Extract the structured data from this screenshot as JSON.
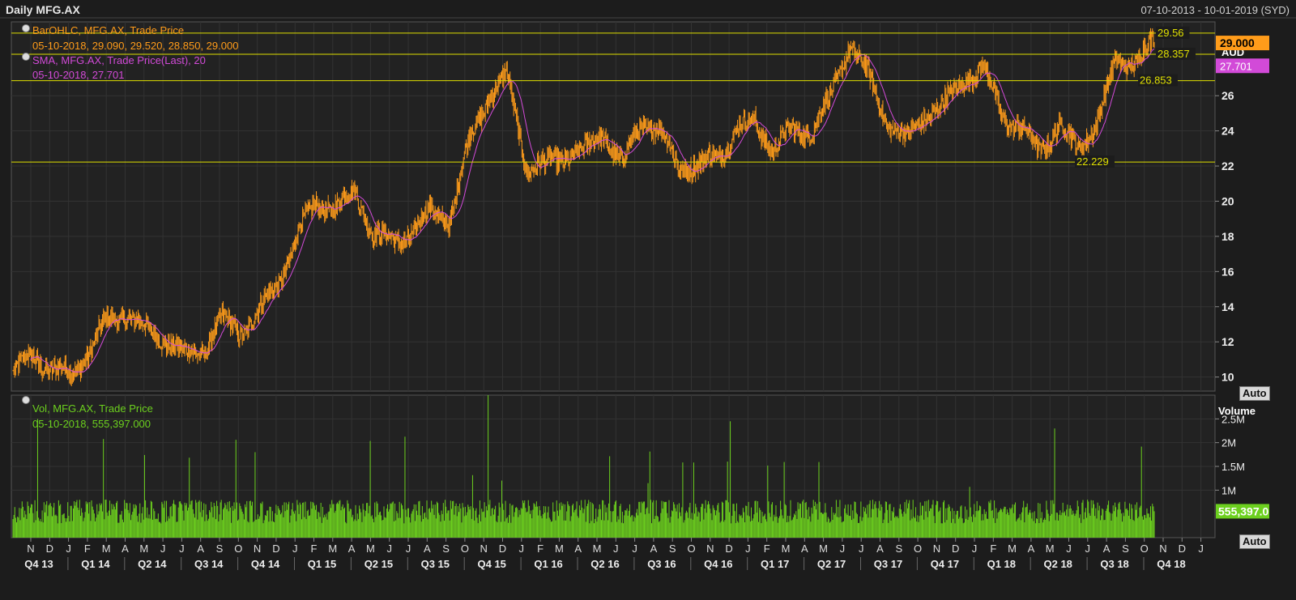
{
  "header": {
    "title": "Daily MFG.AX",
    "date_range": "07-10-2013 - 10-01-2019 (SYD)"
  },
  "legend": {
    "ohlc_name": "BarOHLC, MFG.AX, Trade Price",
    "ohlc_values": "05-10-2018, 29.090, 29.520, 28.850, 29.000",
    "sma_name": "SMA, MFG.AX, Trade Price(Last),  20",
    "sma_values": "05-10-2018, 27.701",
    "vol_name": "Vol, MFG.AX, Trade Price",
    "vol_values": "05-10-2018, 555,397.000"
  },
  "buttons": {
    "auto_price": "Auto",
    "auto_volume": "Auto"
  },
  "price_axis": {
    "unit": "AUD",
    "ticks": [
      "10",
      "12",
      "14",
      "16",
      "18",
      "20",
      "22",
      "24",
      "26"
    ],
    "last_price": "29.000",
    "last_sma": "27.701"
  },
  "volume_axis": {
    "title": "Volume",
    "ticks": [
      "1M",
      "1.5M",
      "2M",
      "2.5M"
    ],
    "last_volume": "555,397.0"
  },
  "horizontal_lines": [
    {
      "value": 29.56,
      "label": "29.56"
    },
    {
      "value": 28.357,
      "label": "28.357"
    },
    {
      "value": 26.853,
      "label": "26.853"
    },
    {
      "value": 22.229,
      "label": "22.229"
    }
  ],
  "months": [
    "N",
    "D",
    "J",
    "F",
    "M",
    "A",
    "M",
    "J",
    "J",
    "A",
    "S",
    "O",
    "N",
    "D",
    "J",
    "F",
    "M",
    "A",
    "M",
    "J",
    "J",
    "A",
    "S",
    "O",
    "N",
    "D",
    "J",
    "F",
    "M",
    "A",
    "M",
    "J",
    "J",
    "A",
    "S",
    "O",
    "N",
    "D",
    "J",
    "F",
    "M",
    "A",
    "M",
    "J",
    "J",
    "A",
    "S",
    "O",
    "N",
    "D",
    "J",
    "F",
    "M",
    "A",
    "M",
    "J",
    "J",
    "A",
    "S",
    "O",
    "N",
    "D",
    "J"
  ],
  "quarters": [
    "Q4 13",
    "Q1 14",
    "Q2 14",
    "Q3 14",
    "Q4 14",
    "Q1 15",
    "Q2 15",
    "Q3 15",
    "Q4 15",
    "Q1 16",
    "Q2 16",
    "Q3 16",
    "Q4 16",
    "Q1 17",
    "Q2 17",
    "Q3 17",
    "Q4 17",
    "Q1 18",
    "Q2 18",
    "Q3 18",
    "Q4 18"
  ],
  "colors": {
    "bars": "#ff9c1a",
    "sma": "#d24ad8",
    "volume": "#6cd01e",
    "hline": "#e0e000",
    "grid": "#333333",
    "background": "#1c1c1c"
  },
  "chart_data": {
    "type": "line",
    "title": "Daily MFG.AX",
    "x_range": [
      "07-10-2013",
      "10-01-2019"
    ],
    "series": [
      {
        "name": "BarOHLC, MFG.AX, Trade Price",
        "x": [
          "2013-10",
          "2013-11",
          "2013-12",
          "2014-01",
          "2014-02",
          "2014-03",
          "2014-04",
          "2014-05",
          "2014-06",
          "2014-07",
          "2014-08",
          "2014-09",
          "2014-10",
          "2014-11",
          "2014-12",
          "2015-01",
          "2015-02",
          "2015-03",
          "2015-04",
          "2015-05",
          "2015-06",
          "2015-07",
          "2015-08",
          "2015-09",
          "2015-10",
          "2015-11",
          "2015-12",
          "2016-01",
          "2016-02",
          "2016-03",
          "2016-04",
          "2016-05",
          "2016-06",
          "2016-07",
          "2016-08",
          "2016-09",
          "2016-10",
          "2016-11",
          "2016-12",
          "2017-01",
          "2017-02",
          "2017-03",
          "2017-04",
          "2017-05",
          "2017-06",
          "2017-07",
          "2017-08",
          "2017-09",
          "2017-10",
          "2017-11",
          "2017-12",
          "2018-01",
          "2018-02",
          "2018-03",
          "2018-04",
          "2018-05",
          "2018-06",
          "2018-07",
          "2018-08",
          "2018-09",
          "2018-10"
        ],
        "close": [
          10.2,
          11.2,
          10.5,
          10.0,
          11.5,
          13.2,
          13.6,
          12.6,
          12.2,
          11.2,
          11.6,
          13.2,
          12.6,
          13.8,
          15.5,
          18.2,
          20.0,
          19.6,
          20.6,
          18.0,
          17.8,
          18.2,
          19.5,
          19.0,
          23.5,
          26.0,
          27.0,
          22.0,
          22.0,
          22.6,
          22.7,
          24.0,
          22.0,
          24.5,
          24.0,
          22.0,
          22.0,
          22.5,
          24.0,
          24.5,
          23.0,
          24.0,
          24.0,
          26.0,
          29.0,
          27.0,
          24.5,
          23.5,
          25.0,
          25.5,
          27.0,
          27.5,
          25.0,
          24.0,
          23.0,
          24.2,
          23.0,
          24.5,
          28.0,
          28.0,
          29.0
        ]
      },
      {
        "name": "SMA, MFG.AX, Trade Price(Last),  20",
        "last": 27.701
      },
      {
        "name": "Vol, MFG.AX, Trade Price",
        "last": 555397
      }
    ],
    "ylim": [
      9.2,
      30.2
    ],
    "volume_ylim": [
      0,
      3000000
    ],
    "grid": true
  }
}
